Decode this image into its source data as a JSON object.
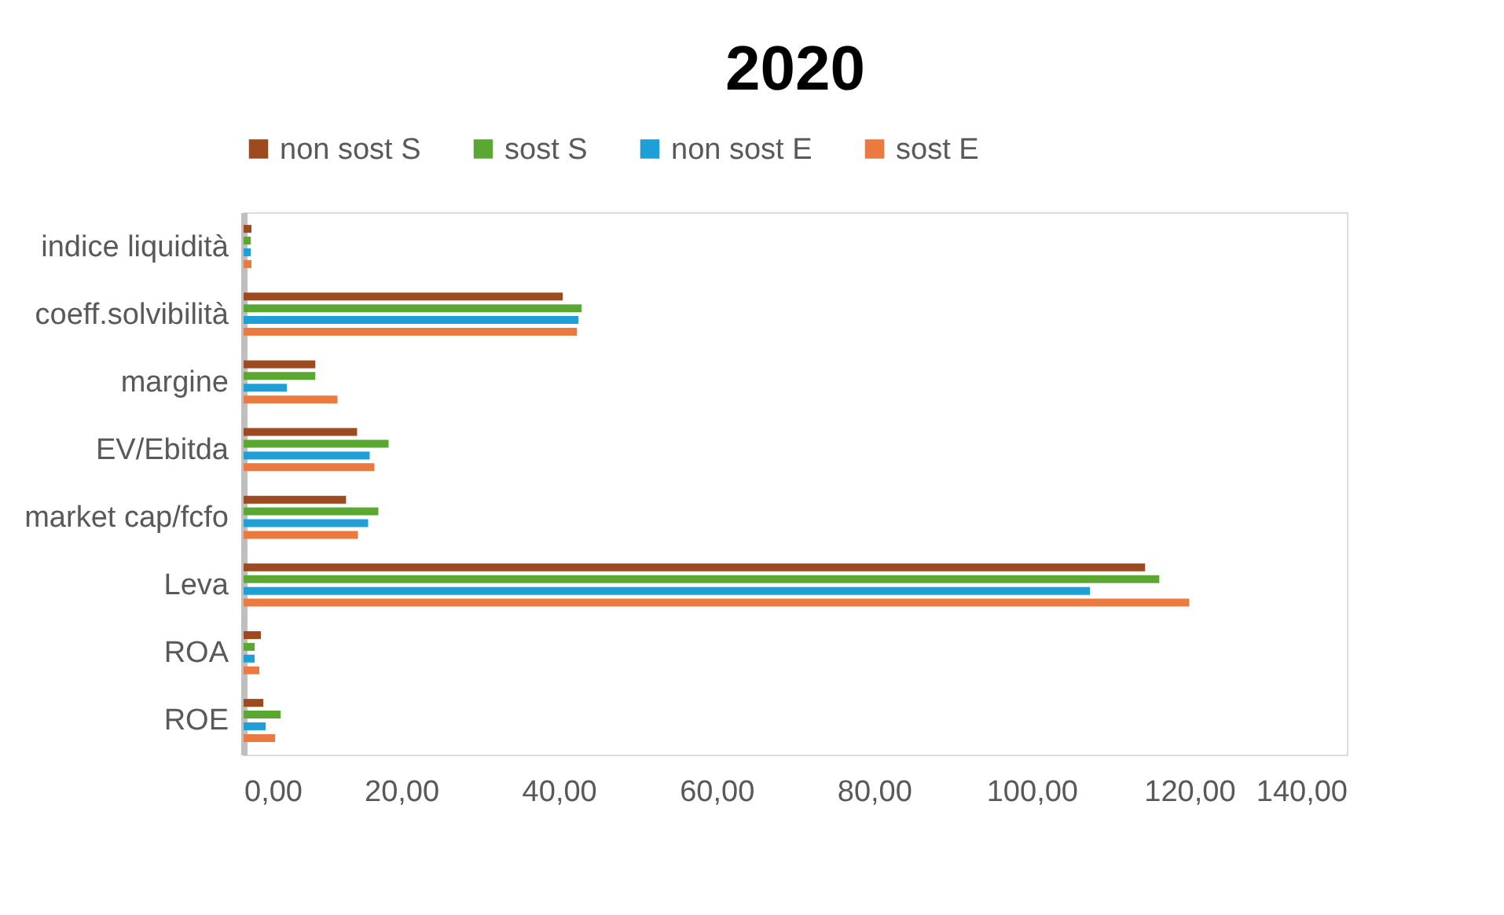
{
  "chart_data": {
    "type": "bar",
    "orientation": "horizontal",
    "title": "2020",
    "categories": [
      "indice liquidità",
      "coeff.solvibilità",
      "margine",
      "EV/Ebitda",
      "market cap/fcfo",
      "Leva",
      "ROA",
      "ROE"
    ],
    "series": [
      {
        "name": "non sost S",
        "color": "#9e4a1f",
        "values": [
          1.0,
          40.5,
          9.1,
          14.4,
          13.0,
          114.4,
          2.2,
          2.5
        ]
      },
      {
        "name": "sost S",
        "color": "#5aa832",
        "values": [
          0.9,
          42.9,
          9.1,
          18.4,
          17.1,
          116.2,
          1.4,
          4.7
        ]
      },
      {
        "name": "non sost E",
        "color": "#1e9fd8",
        "values": [
          0.9,
          42.5,
          5.5,
          16.0,
          15.8,
          107.4,
          1.4,
          2.8
        ]
      },
      {
        "name": "sost E",
        "color": "#ea7a3f",
        "values": [
          1.0,
          42.3,
          11.9,
          16.6,
          14.5,
          120.0,
          2.0,
          4.0
        ]
      }
    ],
    "xlim": [
      0,
      140
    ],
    "xticks": [
      {
        "value": 0,
        "label": "0,00"
      },
      {
        "value": 20,
        "label": "20,00"
      },
      {
        "value": 40,
        "label": "40,00"
      },
      {
        "value": 60,
        "label": "60,00"
      },
      {
        "value": 80,
        "label": "80,00"
      },
      {
        "value": 100,
        "label": "100,00"
      },
      {
        "value": 120,
        "label": "120,00"
      },
      {
        "value": 140,
        "label": "140,00"
      }
    ],
    "legend": "top",
    "grid": false
  }
}
